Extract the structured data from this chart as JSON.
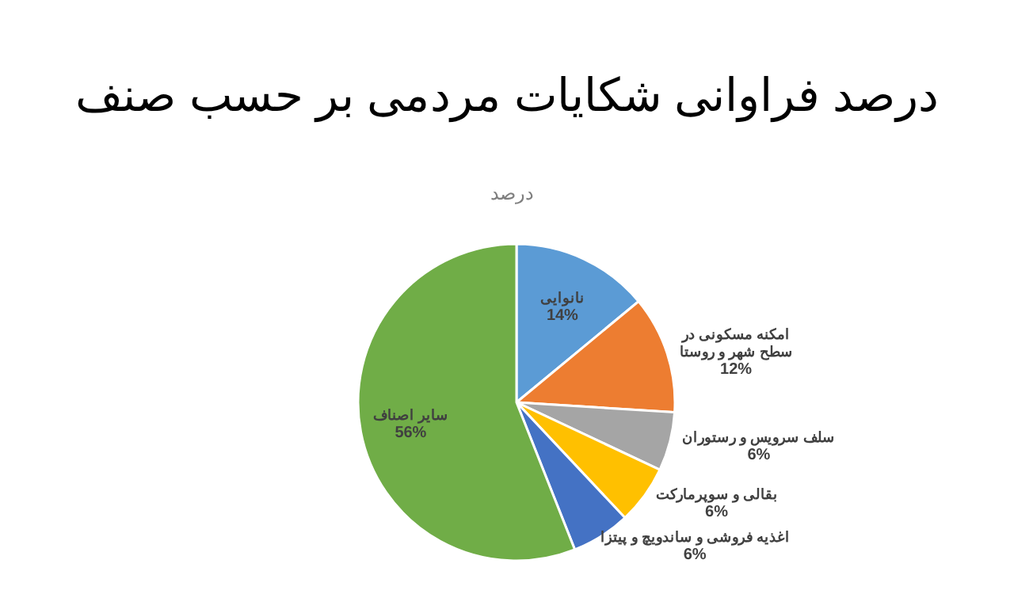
{
  "chart_data": {
    "type": "pie",
    "title": "درصد فراوانی شکایات مردمی بر حسب صنف",
    "subtitle": "درصد",
    "categories": [
      "نانوایی",
      "امکنه مسکونی در سطح شهر و روستا",
      "سلف سرویس و رستوران",
      "بقالی و سوپرمارکت",
      "اغذیه فروشی و ساندویچ و پیتزا",
      "سایر اصناف"
    ],
    "values": [
      14,
      12,
      6,
      6,
      6,
      56
    ],
    "colors": [
      "#5b9bd5",
      "#ed7d31",
      "#a5a5a5",
      "#ffc000",
      "#4472c4",
      "#70ad47"
    ],
    "value_labels": [
      "14%",
      "12%",
      "6%",
      "6%",
      "6%",
      "56%"
    ]
  }
}
